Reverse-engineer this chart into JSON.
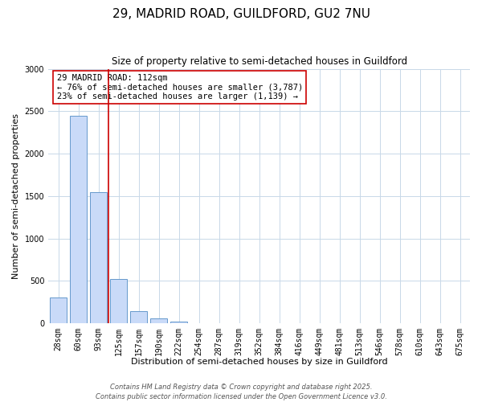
{
  "title": "29, MADRID ROAD, GUILDFORD, GU2 7NU",
  "subtitle": "Size of property relative to semi-detached houses in Guildford",
  "xlabel": "Distribution of semi-detached houses by size in Guildford",
  "ylabel": "Number of semi-detached properties",
  "categories": [
    "28sqm",
    "60sqm",
    "93sqm",
    "125sqm",
    "157sqm",
    "190sqm",
    "222sqm",
    "254sqm",
    "287sqm",
    "319sqm",
    "352sqm",
    "384sqm",
    "416sqm",
    "449sqm",
    "481sqm",
    "513sqm",
    "546sqm",
    "578sqm",
    "610sqm",
    "643sqm",
    "675sqm"
  ],
  "values": [
    300,
    2450,
    1550,
    520,
    145,
    60,
    20,
    5,
    0,
    0,
    0,
    0,
    0,
    0,
    0,
    0,
    0,
    0,
    0,
    0,
    0
  ],
  "bar_color": "#c9daf8",
  "bar_edge_color": "#6699cc",
  "vline_x": 2.5,
  "vline_color": "#cc0000",
  "annotation_line1": "29 MADRID ROAD: 112sqm",
  "annotation_line2": "← 76% of semi-detached houses are smaller (3,787)",
  "annotation_line3": "23% of semi-detached houses are larger (1,139) →",
  "annotation_box_edge_color": "#cc0000",
  "ylim": [
    0,
    3000
  ],
  "yticks": [
    0,
    500,
    1000,
    1500,
    2000,
    2500,
    3000
  ],
  "background_color": "#ffffff",
  "grid_color": "#c8d8e8",
  "footer_line1": "Contains HM Land Registry data © Crown copyright and database right 2025.",
  "footer_line2": "Contains public sector information licensed under the Open Government Licence v3.0.",
  "title_fontsize": 11,
  "subtitle_fontsize": 8.5,
  "axis_label_fontsize": 8,
  "tick_fontsize": 7,
  "annotation_fontsize": 7.5,
  "footer_fontsize": 6
}
